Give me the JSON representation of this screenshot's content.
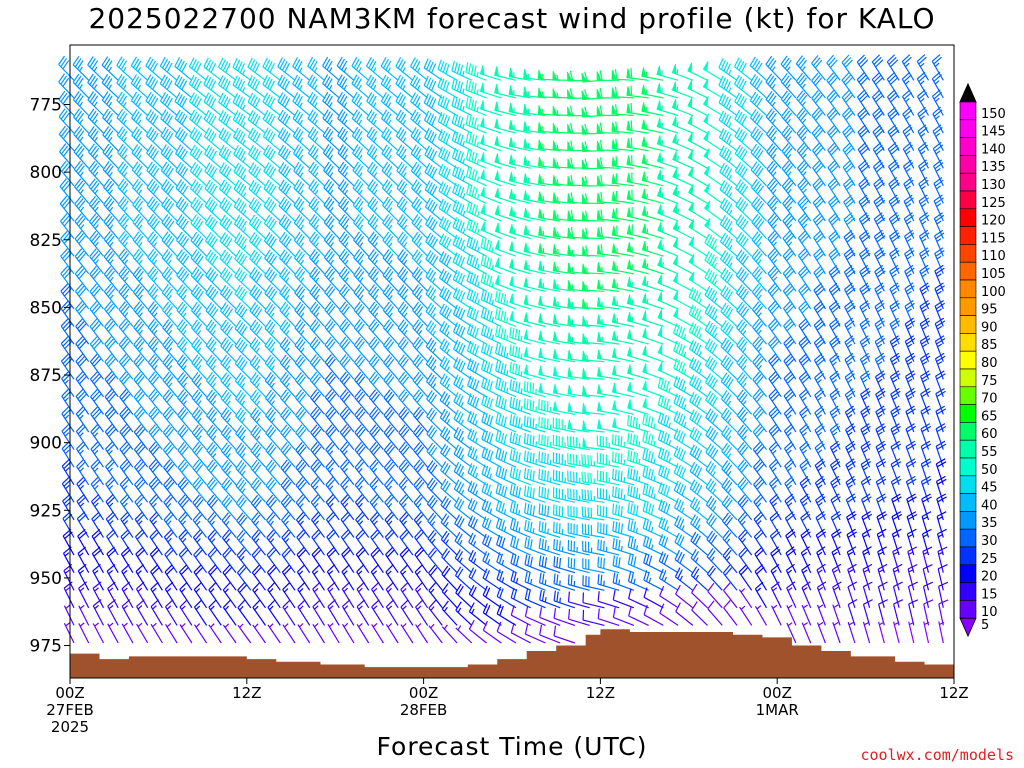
{
  "chart_data": {
    "type": "wind_profile",
    "title": "2025022700 NAM3KM forecast wind profile (kt) for KALO",
    "xlabel": "Forecast Time (UTC)",
    "credit": "coolwx.com/models",
    "y_ticks": [
      775,
      800,
      825,
      850,
      875,
      900,
      925,
      950,
      975
    ],
    "ylim": [
      753,
      987
    ],
    "x_hours": [
      0,
      60
    ],
    "x_ticks": [
      {
        "hour": 0,
        "lines": [
          "00Z",
          "27FEB",
          "2025"
        ]
      },
      {
        "hour": 12,
        "lines": [
          "12Z"
        ]
      },
      {
        "hour": 24,
        "lines": [
          "00Z",
          "28FEB"
        ]
      },
      {
        "hour": 36,
        "lines": [
          "12Z"
        ]
      },
      {
        "hour": 48,
        "lines": [
          "00Z",
          "1MAR"
        ]
      },
      {
        "hour": 60,
        "lines": [
          "12Z"
        ]
      }
    ],
    "terrain_color": "#a0522d",
    "surface_pressure": [
      {
        "hour": 0,
        "p": 978
      },
      {
        "hour": 2,
        "p": 980
      },
      {
        "hour": 4,
        "p": 979
      },
      {
        "hour": 6,
        "p": 979
      },
      {
        "hour": 12,
        "p": 980
      },
      {
        "hour": 14,
        "p": 981
      },
      {
        "hour": 17,
        "p": 982
      },
      {
        "hour": 20,
        "p": 983
      },
      {
        "hour": 24,
        "p": 983
      },
      {
        "hour": 27,
        "p": 982
      },
      {
        "hour": 29,
        "p": 980
      },
      {
        "hour": 31,
        "p": 977
      },
      {
        "hour": 33,
        "p": 975
      },
      {
        "hour": 35,
        "p": 971
      },
      {
        "hour": 36,
        "p": 969
      },
      {
        "hour": 38,
        "p": 970
      },
      {
        "hour": 43,
        "p": 970
      },
      {
        "hour": 45,
        "p": 971
      },
      {
        "hour": 47,
        "p": 972
      },
      {
        "hour": 49,
        "p": 975
      },
      {
        "hour": 51,
        "p": 977
      },
      {
        "hour": 53,
        "p": 979
      },
      {
        "hour": 56,
        "p": 981
      },
      {
        "hour": 58,
        "p": 982
      },
      {
        "hour": 60,
        "p": 984
      }
    ],
    "colorbar": {
      "levels": [
        5,
        10,
        15,
        20,
        25,
        30,
        35,
        40,
        45,
        50,
        55,
        60,
        65,
        70,
        75,
        80,
        85,
        90,
        95,
        100,
        105,
        110,
        115,
        120,
        125,
        130,
        135,
        140,
        145,
        150
      ],
      "colors": [
        "#8a00ff",
        "#6600ff",
        "#3300ff",
        "#0000ff",
        "#0033ff",
        "#0066ff",
        "#0099ff",
        "#00bbff",
        "#00ddee",
        "#00ffcc",
        "#00ffaa",
        "#00ff66",
        "#00ff00",
        "#66ff00",
        "#ccff00",
        "#ffff00",
        "#ffdd00",
        "#ffbb00",
        "#ff9900",
        "#ff8800",
        "#ff6600",
        "#ff4400",
        "#ff2200",
        "#ff0000",
        "#ff0044",
        "#ff0088",
        "#ff00aa",
        "#ff00cc",
        "#ff00ee",
        "#ff00ff"
      ]
    },
    "wind_rows": [
      {
        "p": 770,
        "dir": 300,
        "spd": 40
      },
      {
        "p": 820,
        "dir": 310,
        "spd": 40
      },
      {
        "p": 870,
        "dir": 315,
        "spd": 35
      },
      {
        "p": 920,
        "dir": 320,
        "spd": 30
      },
      {
        "p": 960,
        "dir": 330,
        "spd": 15
      }
    ],
    "wind_columns": [
      {
        "hour": 0,
        "spd": 28,
        "dir": 325
      },
      {
        "hour": 6,
        "spd": 33,
        "dir": 320
      },
      {
        "hour": 12,
        "spd": 38,
        "dir": 315
      },
      {
        "hour": 18,
        "spd": 30,
        "dir": 320
      },
      {
        "hour": 24,
        "spd": 32,
        "dir": 318
      },
      {
        "hour": 28,
        "spd": 40,
        "dir": 300
      },
      {
        "hour": 32,
        "spd": 48,
        "dir": 285
      },
      {
        "hour": 36,
        "spd": 52,
        "dir": 275
      },
      {
        "hour": 40,
        "spd": 50,
        "dir": 290
      },
      {
        "hour": 44,
        "spd": 42,
        "dir": 310
      },
      {
        "hour": 48,
        "spd": 30,
        "dir": 325
      },
      {
        "hour": 54,
        "spd": 26,
        "dir": 335
      },
      {
        "hour": 60,
        "spd": 22,
        "dir": 340
      }
    ]
  }
}
